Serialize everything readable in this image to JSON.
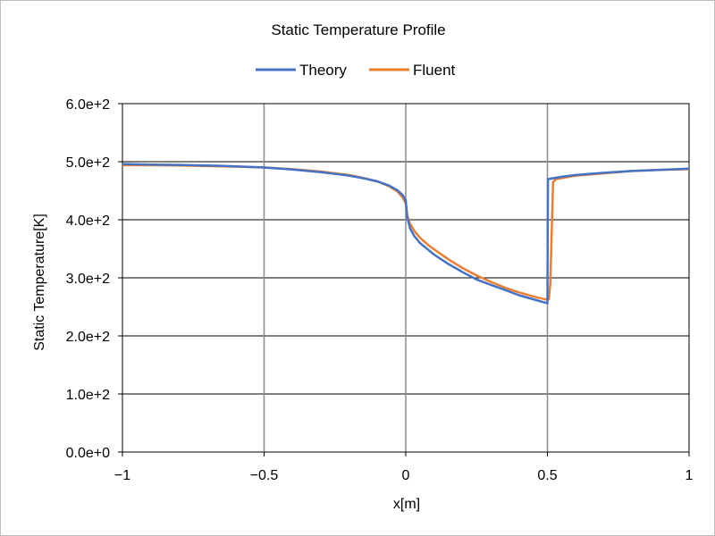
{
  "chart_data": {
    "type": "line",
    "title": "Static Temperature Profile",
    "xlabel": "x[m]",
    "ylabel": "Static Temperature[K]",
    "xlim": [
      -1,
      1
    ],
    "ylim": [
      0,
      600
    ],
    "x_ticks": [
      -1,
      -0.5,
      0,
      0.5,
      1
    ],
    "x_tick_labels": [
      "−1",
      "−0.5",
      "0",
      "0.5",
      "1"
    ],
    "y_ticks": [
      0,
      100,
      200,
      300,
      400,
      500,
      600
    ],
    "y_tick_labels": [
      "0.0e+0",
      "1.0e+2",
      "2.0e+2",
      "3.0e+2",
      "4.0e+2",
      "5.0e+2",
      "6.0e+2"
    ],
    "grid": true,
    "legend_position": "top",
    "series": [
      {
        "name": "Theory",
        "color": "#4472c4",
        "points": [
          [
            -1.0,
            496
          ],
          [
            -0.9,
            495
          ],
          [
            -0.8,
            494.5
          ],
          [
            -0.7,
            493.5
          ],
          [
            -0.6,
            492
          ],
          [
            -0.5,
            490
          ],
          [
            -0.4,
            486.5
          ],
          [
            -0.3,
            482
          ],
          [
            -0.2,
            476
          ],
          [
            -0.15,
            471.5
          ],
          [
            -0.1,
            466
          ],
          [
            -0.06,
            459
          ],
          [
            -0.03,
            451
          ],
          [
            -0.01,
            442
          ],
          [
            0.0,
            433
          ],
          [
            0.005,
            405
          ],
          [
            0.015,
            385
          ],
          [
            0.03,
            372
          ],
          [
            0.05,
            360
          ],
          [
            0.08,
            348
          ],
          [
            0.1,
            340
          ],
          [
            0.15,
            324
          ],
          [
            0.2,
            310
          ],
          [
            0.25,
            297
          ],
          [
            0.3,
            288
          ],
          [
            0.35,
            279
          ],
          [
            0.4,
            270
          ],
          [
            0.45,
            263
          ],
          [
            0.5,
            256
          ],
          [
            0.5,
            256
          ],
          [
            0.502,
            470
          ],
          [
            0.55,
            474
          ],
          [
            0.6,
            477
          ],
          [
            0.7,
            481
          ],
          [
            0.8,
            484
          ],
          [
            0.9,
            486
          ],
          [
            1.0,
            488
          ]
        ]
      },
      {
        "name": "Fluent",
        "color": "#ed7d31",
        "points": [
          [
            -1.0,
            494
          ],
          [
            -0.9,
            494
          ],
          [
            -0.8,
            493.5
          ],
          [
            -0.7,
            492.5
          ],
          [
            -0.6,
            491.5
          ],
          [
            -0.5,
            490
          ],
          [
            -0.4,
            487
          ],
          [
            -0.3,
            483
          ],
          [
            -0.2,
            477
          ],
          [
            -0.15,
            472
          ],
          [
            -0.1,
            466
          ],
          [
            -0.06,
            458
          ],
          [
            -0.03,
            449
          ],
          [
            -0.01,
            438
          ],
          [
            0.0,
            428
          ],
          [
            0.005,
            408
          ],
          [
            0.015,
            393
          ],
          [
            0.03,
            381
          ],
          [
            0.05,
            369
          ],
          [
            0.08,
            356
          ],
          [
            0.1,
            349
          ],
          [
            0.15,
            332
          ],
          [
            0.2,
            317
          ],
          [
            0.25,
            304
          ],
          [
            0.3,
            293
          ],
          [
            0.35,
            283
          ],
          [
            0.4,
            275
          ],
          [
            0.45,
            268
          ],
          [
            0.5,
            262
          ],
          [
            0.505,
            263
          ],
          [
            0.51,
            290
          ],
          [
            0.515,
            380
          ],
          [
            0.52,
            465
          ],
          [
            0.53,
            470
          ],
          [
            0.6,
            476
          ],
          [
            0.7,
            480
          ],
          [
            0.8,
            484
          ],
          [
            0.9,
            486
          ],
          [
            1.0,
            487
          ]
        ]
      }
    ]
  }
}
